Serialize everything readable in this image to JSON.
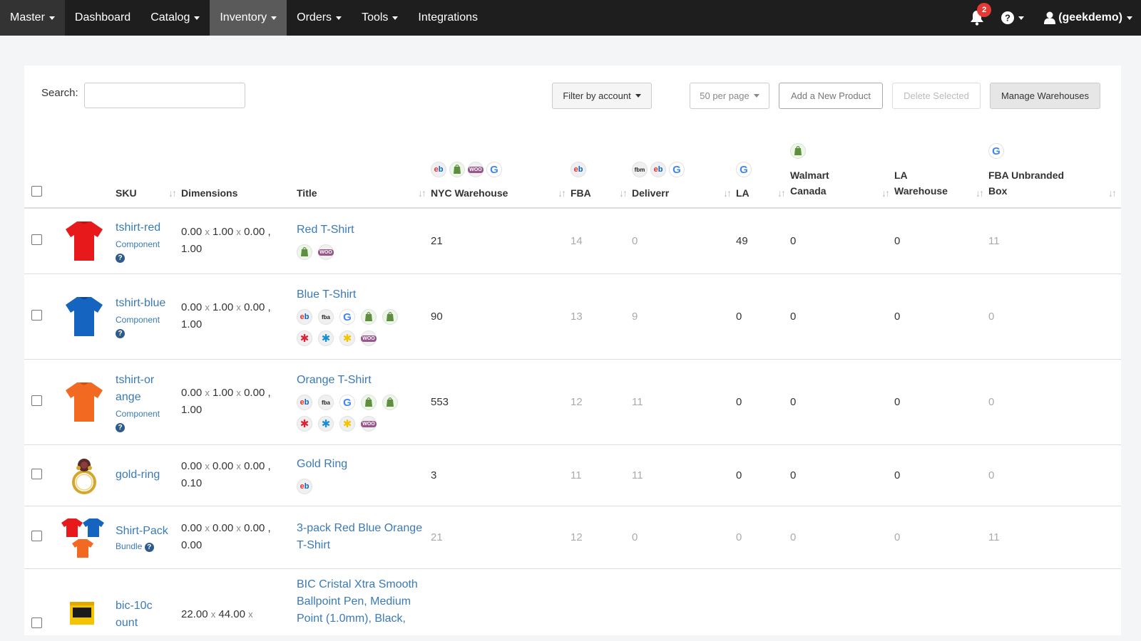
{
  "nav": {
    "master": "Master",
    "items": [
      "Dashboard",
      "Catalog",
      "Inventory",
      "Orders",
      "Tools",
      "Integrations"
    ],
    "notification_count": "2",
    "user": "(geekdemo)"
  },
  "toolbar": {
    "search_label": "Search:",
    "search_value": "",
    "filter_label": "Filter by account",
    "per_page_label": "50 per page",
    "add_label": "Add a New Product",
    "delete_label": "Delete Selected",
    "manage_label": "Manage Warehouses"
  },
  "columns": {
    "sku": "SKU",
    "dimensions": "Dimensions",
    "title": "Title",
    "nyc": "NYC Warehouse",
    "fba": "FBA",
    "deliverr": "Deliverr",
    "la": "LA",
    "walmart_canada": "Walmart Canada",
    "la_warehouse": "LA Warehouse",
    "fba_unbranded": "FBA Unbranded Box"
  },
  "rows": [
    {
      "sku": "tshirt-red",
      "type": "Component",
      "dims_a": "0.00",
      "dims_b": "1.00",
      "dims_c": "0.00",
      "dims_d": "1.00",
      "title": "Red T-Shirt",
      "nyc": "21",
      "fba": "14",
      "deliverr": "0",
      "la": "49",
      "walmart_canada": "0",
      "la_warehouse": "0",
      "fba_unbranded": "11"
    },
    {
      "sku": "tshirt-blue",
      "type": "Component",
      "dims_a": "0.00",
      "dims_b": "1.00",
      "dims_c": "0.00",
      "dims_d": "1.00",
      "title": "Blue T-Shirt",
      "nyc": "90",
      "fba": "13",
      "deliverr": "9",
      "la": "0",
      "walmart_canada": "0",
      "la_warehouse": "0",
      "fba_unbranded": "0"
    },
    {
      "sku": "tshirt-orange",
      "type": "Component",
      "dims_a": "0.00",
      "dims_b": "1.00",
      "dims_c": "0.00",
      "dims_d": "1.00",
      "title": "Orange T-Shirt",
      "nyc": "553",
      "fba": "12",
      "deliverr": "11",
      "la": "0",
      "walmart_canada": "0",
      "la_warehouse": "0",
      "fba_unbranded": "0"
    },
    {
      "sku": "gold-ring",
      "type": "",
      "dims_a": "0.00",
      "dims_b": "0.00",
      "dims_c": "0.00",
      "dims_d": "0.10",
      "title": "Gold Ring",
      "nyc": "3",
      "fba": "11",
      "deliverr": "11",
      "la": "0",
      "walmart_canada": "0",
      "la_warehouse": "0",
      "fba_unbranded": "0"
    },
    {
      "sku": "Shirt-Pack",
      "type": "Bundle",
      "dims_a": "0.00",
      "dims_b": "0.00",
      "dims_c": "0.00",
      "dims_d": "0.00",
      "title": "3-pack Red Blue Orange T-Shirt",
      "nyc": "21",
      "fba": "12",
      "deliverr": "0",
      "la": "0",
      "walmart_canada": "0",
      "la_warehouse": "0",
      "fba_unbranded": "11"
    },
    {
      "sku": "bic-10count",
      "type": "",
      "dims_a": "22.00",
      "dims_b": "44.00",
      "title": "BIC Cristal Xtra Smooth Ballpoint Pen, Medium Point (1.0mm), Black,"
    }
  ],
  "colors": {
    "link": "#3a7ab6",
    "navbar": "#1e1e1e",
    "badge": "#e53935"
  }
}
